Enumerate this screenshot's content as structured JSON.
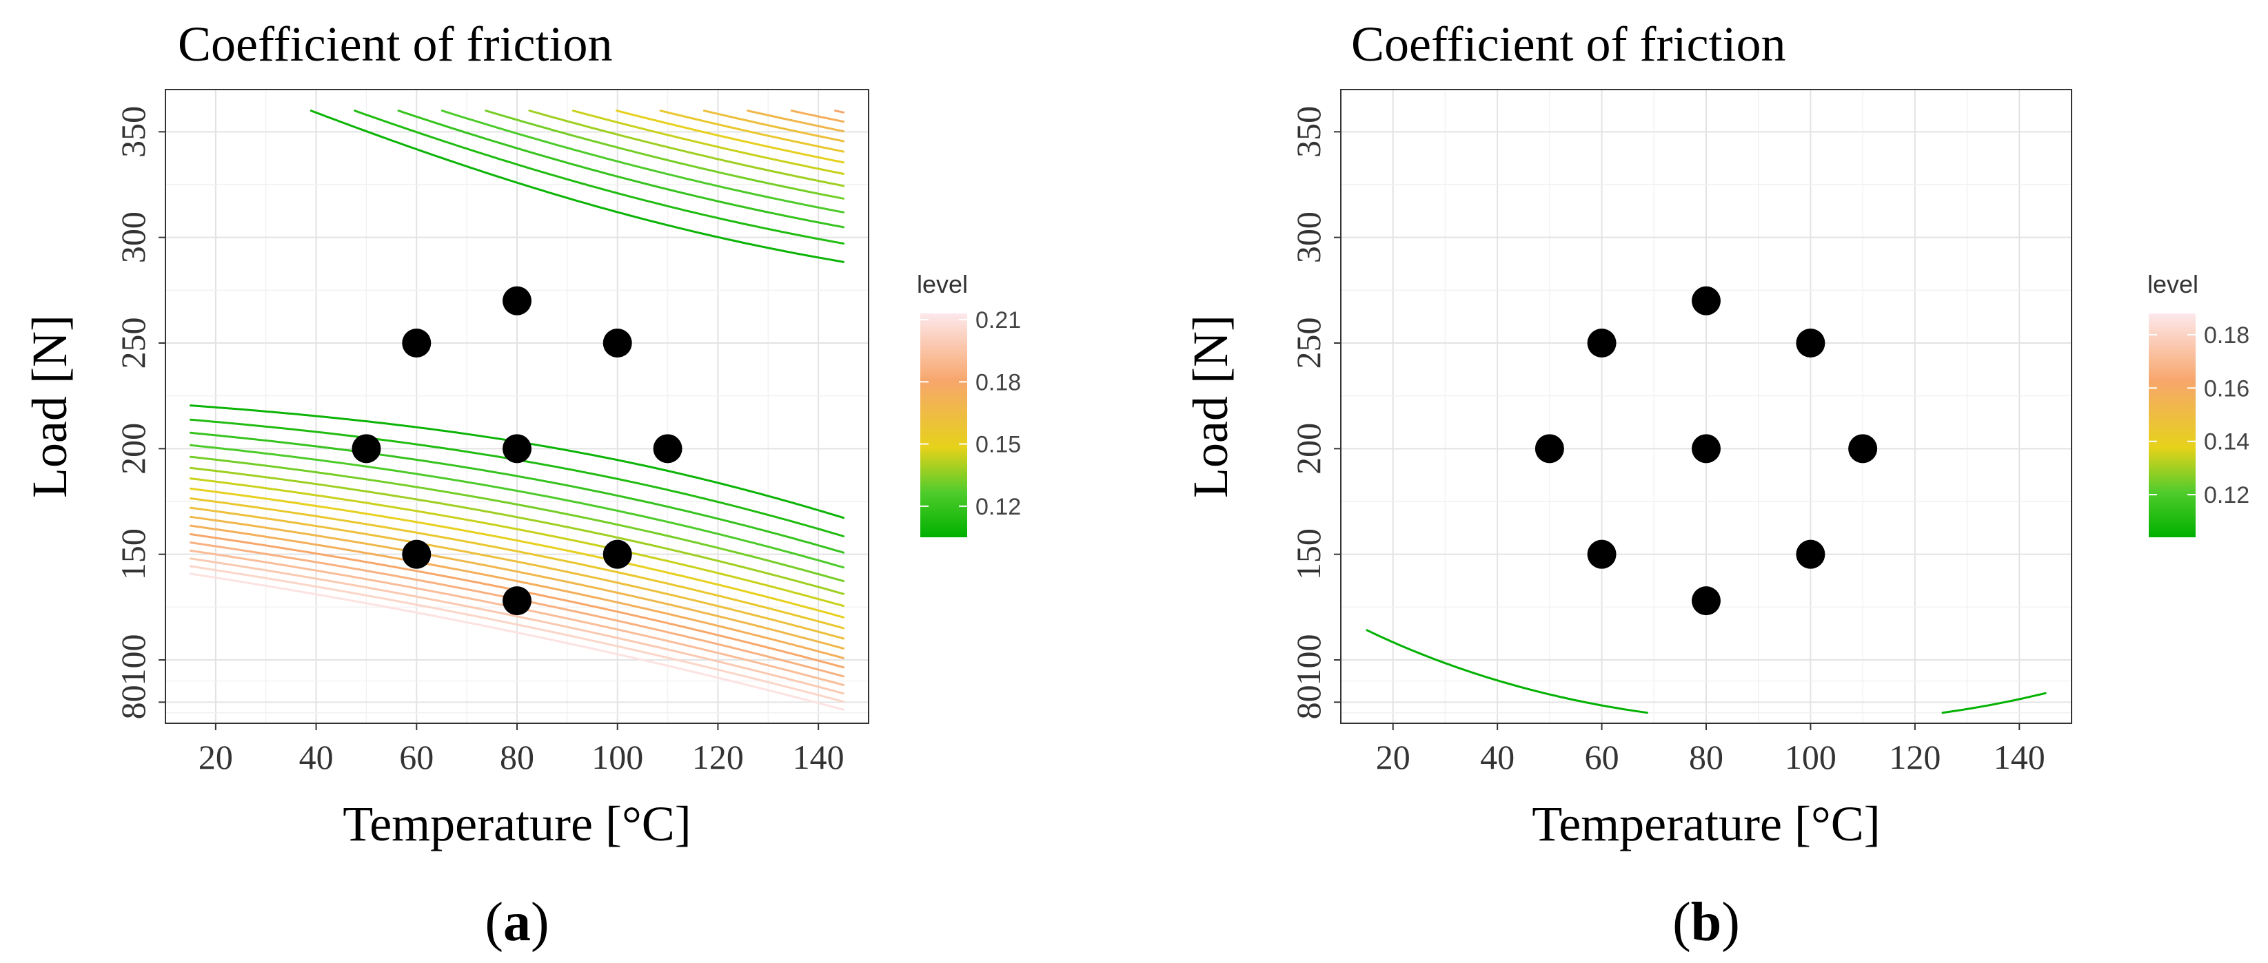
{
  "chart_data": [
    {
      "type": "contour",
      "panel_label": "a",
      "title": "Coefficient of friction",
      "xlabel": "Temperature [°C]",
      "ylabel": "Load [N]",
      "xlim": [
        10,
        150
      ],
      "ylim": [
        70,
        370
      ],
      "xticks": [
        20,
        40,
        60,
        80,
        100,
        120,
        140
      ],
      "yticks": [
        80,
        100,
        150,
        200,
        250,
        300,
        350
      ],
      "legend": {
        "title": "level",
        "ticks": [
          "0.21",
          "0.18",
          "0.15",
          "0.12"
        ],
        "tick_values": [
          0.21,
          0.18,
          0.15,
          0.12
        ],
        "range": [
          0.105,
          0.213
        ],
        "placement": "right"
      },
      "surface": {
        "form": "a + b*(y-y0)^2 + c*(x-x0)*(y-y0) + d*x",
        "a": 0.106,
        "b": 5.3e-06,
        "c": 6e-06,
        "d": -0.00012,
        "x0": 150,
        "y0": 225
      },
      "contour_levels": {
        "from": 0.108,
        "to": 0.21,
        "step": 0.006
      },
      "points": [
        {
          "x": 60,
          "y": 250
        },
        {
          "x": 80,
          "y": 270
        },
        {
          "x": 100,
          "y": 250
        },
        {
          "x": 50,
          "y": 200
        },
        {
          "x": 80,
          "y": 200
        },
        {
          "x": 110,
          "y": 200
        },
        {
          "x": 60,
          "y": 150
        },
        {
          "x": 100,
          "y": 150
        },
        {
          "x": 80,
          "y": 128
        }
      ]
    },
    {
      "type": "contour",
      "panel_label": "b",
      "title": "Coefficient of friction",
      "xlabel": "Temperature [°C]",
      "ylabel": "Load [N]",
      "xlim": [
        10,
        150
      ],
      "ylim": [
        70,
        370
      ],
      "xticks": [
        20,
        40,
        60,
        80,
        100,
        120,
        140
      ],
      "yticks": [
        80,
        100,
        150,
        200,
        250,
        300,
        350
      ],
      "legend": {
        "title": "level",
        "ticks": [
          "0.18",
          "0.16",
          "0.14",
          "0.12"
        ],
        "tick_values": [
          0.18,
          0.16,
          0.14,
          0.12
        ],
        "range": [
          0.104,
          0.188
        ],
        "placement": "right"
      },
      "surface": {
        "form": "a + (x-x0)^2/sx^2 + (y-y0)^2/sy^2",
        "a": 0.104,
        "x0": 97,
        "y0": 305,
        "sx": 6300,
        "sy": 10500
      },
      "contour_levels": {
        "from": 0.1045,
        "to": 0.19,
        "step": 0.0045
      },
      "points": [
        {
          "x": 60,
          "y": 250
        },
        {
          "x": 80,
          "y": 270
        },
        {
          "x": 100,
          "y": 250
        },
        {
          "x": 50,
          "y": 200
        },
        {
          "x": 80,
          "y": 200
        },
        {
          "x": 110,
          "y": 200
        },
        {
          "x": 60,
          "y": 150
        },
        {
          "x": 100,
          "y": 150
        },
        {
          "x": 80,
          "y": 128
        }
      ]
    }
  ]
}
